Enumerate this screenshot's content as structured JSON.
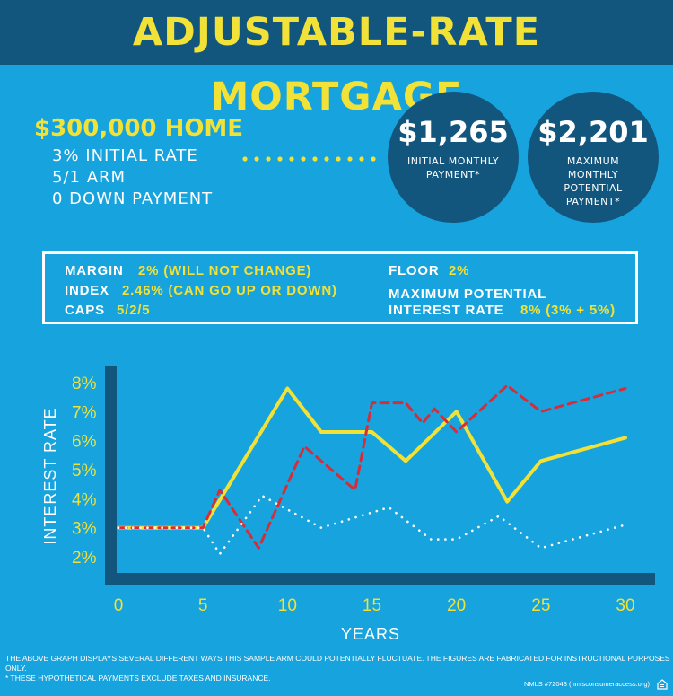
{
  "title": "ADJUSTABLE-RATE MORTGAGE",
  "home": {
    "price": "$300,000 HOME",
    "details": [
      "3% INITIAL RATE",
      "5/1 ARM",
      "0 DOWN PAYMENT"
    ]
  },
  "payments": [
    {
      "amount": "$1,265",
      "label": "INITIAL MONTHLY PAYMENT*"
    },
    {
      "amount": "$2,201",
      "label": "MAXIMUM MONTHLY POTENTIAL PAYMENT*"
    }
  ],
  "terms": {
    "margin_label": "MARGIN",
    "margin_value": "2% (WILL NOT CHANGE)",
    "index_label": "INDEX",
    "index_value": "2.46% (CAN GO UP OR DOWN)",
    "caps_label": "CAPS",
    "caps_value": "5/2/5",
    "floor_label": "FLOOR",
    "floor_value": "2%",
    "max_label_1": "MAXIMUM POTENTIAL",
    "max_label_2": "INTEREST RATE",
    "max_value": "8% (3% + 5%)"
  },
  "chart_data": {
    "type": "line",
    "xlabel": "YEARS",
    "ylabel": "INTEREST RATE",
    "xlim": [
      0,
      30
    ],
    "ylim": [
      2,
      8
    ],
    "x_ticks": [
      0,
      5,
      10,
      15,
      20,
      25,
      30
    ],
    "y_ticks": [
      "2%",
      "3%",
      "4%",
      "5%",
      "6%",
      "7%",
      "8%"
    ],
    "grid": false,
    "series": [
      {
        "style": "solid",
        "color": "#f2e136",
        "points": [
          [
            0,
            3
          ],
          [
            5,
            3
          ],
          [
            10,
            7.8
          ],
          [
            12,
            6.3
          ],
          [
            15,
            6.3
          ],
          [
            17,
            5.3
          ],
          [
            20,
            7.0
          ],
          [
            23,
            3.9
          ],
          [
            25,
            5.3
          ],
          [
            30,
            6.1
          ]
        ]
      },
      {
        "style": "dashed",
        "color": "#d62d3a",
        "points": [
          [
            0,
            3
          ],
          [
            5,
            3
          ],
          [
            6,
            4.3
          ],
          [
            8.3,
            2.3
          ],
          [
            11,
            5.8
          ],
          [
            14,
            4.3
          ],
          [
            15,
            7.3
          ],
          [
            17,
            7.3
          ],
          [
            18,
            6.6
          ],
          [
            18.7,
            7.1
          ],
          [
            20,
            6.3
          ],
          [
            23,
            7.9
          ],
          [
            25,
            7.0
          ],
          [
            30,
            7.8
          ]
        ]
      },
      {
        "style": "dotted",
        "color": "#ffffff",
        "points": [
          [
            0,
            3
          ],
          [
            5,
            3
          ],
          [
            6,
            2.1
          ],
          [
            8.5,
            4.1
          ],
          [
            12,
            3.0
          ],
          [
            16,
            3.7
          ],
          [
            18.5,
            2.6
          ],
          [
            20,
            2.6
          ],
          [
            22.5,
            3.4
          ],
          [
            25,
            2.3
          ],
          [
            30,
            3.1
          ]
        ]
      }
    ]
  },
  "footnote_1": "THE ABOVE GRAPH DISPLAYS SEVERAL DIFFERENT WAYS THIS SAMPLE ARM COULD POTENTIALLY FLUCTUATE. THE FIGURES ARE FABRICATED FOR INSTRUCTIONAL PURPOSES ONLY.",
  "footnote_2": "* THESE HYPOTHETICAL PAYMENTS EXCLUDE TAXES AND INSURANCE.",
  "nmls": "NMLS #72043 (nmlsconsumeraccess.org)",
  "colors": {
    "background": "#17a3dd",
    "navy": "#12567e",
    "yellow": "#f2e136",
    "red": "#d62d3a"
  }
}
